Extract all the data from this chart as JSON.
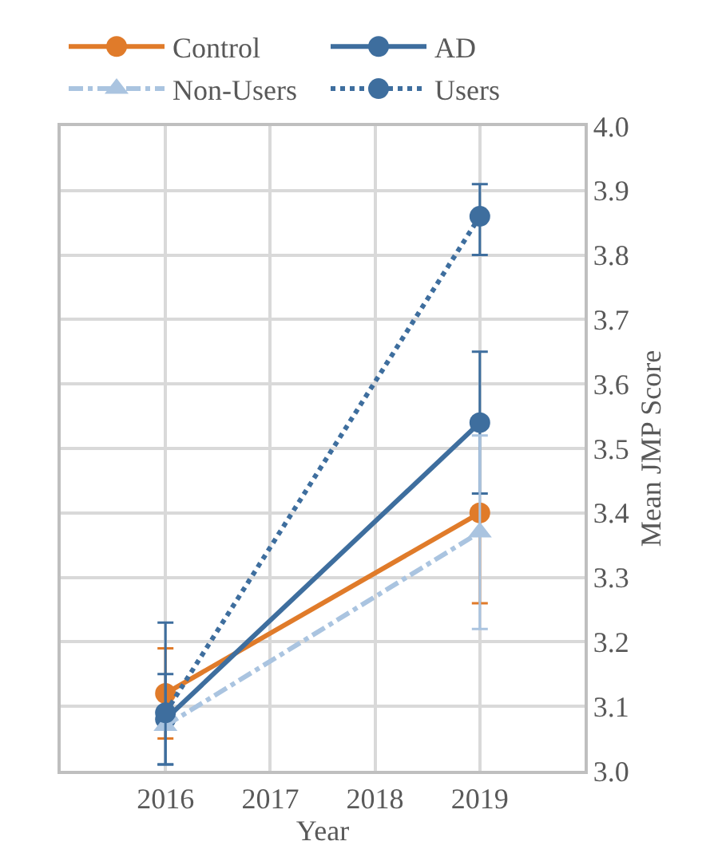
{
  "chart_data": {
    "type": "line",
    "xlabel": "Year",
    "ylabel": "Mean JMP Score",
    "x": [
      2016,
      2019
    ],
    "xlim": [
      2015,
      2020
    ],
    "xticks": [
      2016,
      2017,
      2018,
      2019
    ],
    "ylim": [
      3.0,
      4.0
    ],
    "yticks": [
      {
        "value": 3.0,
        "label": "3.0"
      },
      {
        "value": 3.1,
        "label": "3.1"
      },
      {
        "value": 3.2,
        "label": "3.2"
      },
      {
        "value": 3.3,
        "label": "3.3"
      },
      {
        "value": 3.4,
        "label": "3.4"
      },
      {
        "value": 3.5,
        "label": "3.5"
      },
      {
        "value": 3.6,
        "label": "3.6"
      },
      {
        "value": 3.7,
        "label": "3.7"
      },
      {
        "value": 3.8,
        "label": "3.8"
      },
      {
        "value": 3.9,
        "label": "3.9"
      },
      {
        "value": 4.0,
        "label": "4.0"
      }
    ],
    "grid": true,
    "legend": "top",
    "series": [
      {
        "name": "Control",
        "color": "#e07b2a",
        "values": [
          3.12,
          3.4
        ],
        "errors": [
          [
            3.05,
            3.19
          ],
          [
            3.26,
            3.4
          ]
        ],
        "marker": "circle",
        "line_style": "solid"
      },
      {
        "name": "AD",
        "color": "#3e6e9e",
        "values": [
          3.08,
          3.54
        ],
        "errors": [
          [
            3.01,
            3.15
          ],
          [
            3.43,
            3.65
          ]
        ],
        "marker": "circle",
        "line_style": "solid"
      },
      {
        "name": "Non-Users",
        "color": "#aac4e0",
        "values": [
          3.07,
          3.37
        ],
        "errors": [
          null,
          [
            3.22,
            3.52
          ]
        ],
        "marker": "triangle",
        "line_style": "dashed"
      },
      {
        "name": "Users",
        "color": "#3e6e9e",
        "values": [
          3.09,
          3.86
        ],
        "errors": [
          [
            3.01,
            3.23
          ],
          [
            3.8,
            3.91
          ]
        ],
        "marker": "circle",
        "line_style": "dotted"
      }
    ]
  }
}
